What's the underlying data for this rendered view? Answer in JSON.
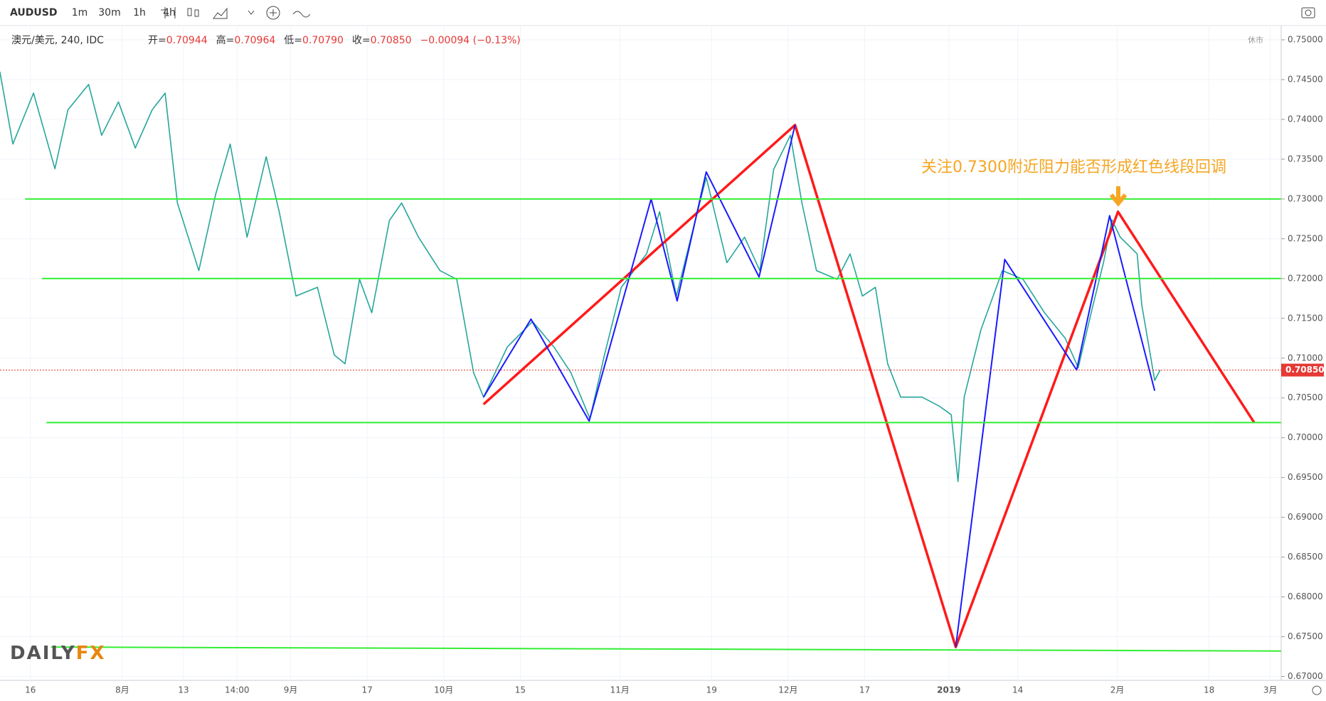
{
  "toolbar": {
    "symbol": "AUDUSD",
    "intervals": [
      "1m",
      "30m",
      "1h",
      "4h"
    ],
    "active_interval": "4h"
  },
  "legend": {
    "title": "澳元/美元, 240, IDC",
    "items": [
      {
        "label": "开=",
        "value": "0.70944"
      },
      {
        "label": "高=",
        "value": "0.70964"
      },
      {
        "label": "低=",
        "value": "0.70790"
      },
      {
        "label": "收=",
        "value": "0.70850"
      }
    ],
    "change": "−0.00094 (−0.13%)",
    "status": "休市"
  },
  "logo": {
    "left": "DAILY",
    "right": "FX"
  },
  "chart_data": {
    "type": "line",
    "annotation": "关注0.7300附近阻力能否形成红色线段回调",
    "xlim": [
      -4,
      163.4
    ],
    "ylim": [
      0.67,
      0.75
    ],
    "xticks": [
      {
        "value": 0,
        "label": "16"
      },
      {
        "value": 12,
        "label": "8月"
      },
      {
        "value": 20,
        "label": "13"
      },
      {
        "value": 27,
        "label": "14:00"
      },
      {
        "value": 34,
        "label": "9月"
      },
      {
        "value": 44,
        "label": "17"
      },
      {
        "value": 54,
        "label": "10月"
      },
      {
        "value": 64,
        "label": "15"
      },
      {
        "value": 77,
        "label": "11月"
      },
      {
        "value": 89,
        "label": "19"
      },
      {
        "value": 99,
        "label": "12月"
      },
      {
        "value": 109,
        "label": "17"
      },
      {
        "value": 120,
        "label": "2019"
      },
      {
        "value": 129,
        "label": "14"
      },
      {
        "value": 142,
        "label": "2月"
      },
      {
        "value": 154,
        "label": "18"
      },
      {
        "value": 162,
        "label": "3月"
      }
    ],
    "yticks": [
      {
        "value": 0.75,
        "label": "0.75000"
      },
      {
        "value": 0.745,
        "label": "0.74500"
      },
      {
        "value": 0.74,
        "label": "0.74000"
      },
      {
        "value": 0.735,
        "label": "0.73500"
      },
      {
        "value": 0.73,
        "label": "0.73000"
      },
      {
        "value": 0.725,
        "label": "0.72500"
      },
      {
        "value": 0.72,
        "label": "0.72000"
      },
      {
        "value": 0.715,
        "label": "0.71500"
      },
      {
        "value": 0.71,
        "label": "0.71000"
      },
      {
        "value": 0.705,
        "label": "0.70500"
      },
      {
        "value": 0.7,
        "label": "0.70000"
      },
      {
        "value": 0.695,
        "label": "0.69500"
      },
      {
        "value": 0.69,
        "label": "0.69000"
      },
      {
        "value": 0.685,
        "label": "0.68500"
      },
      {
        "value": 0.68,
        "label": "0.68000"
      },
      {
        "value": 0.675,
        "label": "0.67500"
      },
      {
        "value": 0.67,
        "label": "0.67000"
      }
    ],
    "grid": true,
    "last_price": {
      "value": 0.7085,
      "label": "0.70850",
      "color": "#e53935"
    },
    "series": [
      {
        "name": "AUDUSD",
        "color": "#26a69a",
        "x": [
          -4.0,
          -2.3,
          0.4,
          3.2,
          4.9,
          7.6,
          9.3,
          11.5,
          13.7,
          15.9,
          17.6,
          19.2,
          22.0,
          24.2,
          26.1,
          28.3,
          30.8,
          32.5,
          34.7,
          37.5,
          39.7,
          41.1,
          43.0,
          44.6,
          46.9,
          48.5,
          50.7,
          53.5,
          55.7,
          57.9,
          59.2,
          62.3,
          65.6,
          68.4,
          70.6,
          73.1,
          75.0,
          77.2,
          80.5,
          82.2,
          84.4,
          86.6,
          88.3,
          91.0,
          93.3,
          95.3,
          97.1,
          99.3,
          100.8,
          102.7,
          105.4,
          107.1,
          108.7,
          110.4,
          112.0,
          113.7,
          116.5,
          118.7,
          120.3,
          121.2,
          122.0,
          124.2,
          127.0,
          129.7,
          132.5,
          135.2,
          136.9,
          138.6,
          140.2,
          141.3,
          142.4,
          144.6,
          145.2,
          146.9,
          147.6
        ],
        "values": [
          0.746,
          0.7369,
          0.7433,
          0.7338,
          0.7412,
          0.7444,
          0.738,
          0.7422,
          0.7364,
          0.7412,
          0.7433,
          0.7295,
          0.721,
          0.7306,
          0.7369,
          0.7252,
          0.7353,
          0.7284,
          0.7178,
          0.7189,
          0.7104,
          0.7093,
          0.7199,
          0.7157,
          0.7273,
          0.7295,
          0.7252,
          0.721,
          0.7199,
          0.7082,
          0.7051,
          0.7114,
          0.7146,
          0.7114,
          0.7082,
          0.7024,
          0.7104,
          0.7189,
          0.7231,
          0.7284,
          0.7178,
          0.7263,
          0.7327,
          0.722,
          0.7252,
          0.721,
          0.7337,
          0.738,
          0.7295,
          0.721,
          0.7199,
          0.7231,
          0.7178,
          0.7189,
          0.7093,
          0.7051,
          0.7051,
          0.704,
          0.7029,
          0.6945,
          0.7051,
          0.7136,
          0.721,
          0.7199,
          0.7157,
          0.7125,
          0.7088,
          0.7157,
          0.722,
          0.7274,
          0.7252,
          0.7231,
          0.7167,
          0.7072,
          0.7085
        ]
      },
      {
        "name": "red segments",
        "color": "#ff1a1a",
        "x": [
          59.2,
          99.9,
          120.9,
          142.1,
          159.9
        ],
        "values": [
          0.7042,
          0.7393,
          0.6737,
          0.7284,
          0.7019
        ]
      },
      {
        "name": "blue segments 1",
        "color": "#1a1aff",
        "x": [
          59.2,
          65.4,
          73.0,
          81.1,
          84.5,
          88.3,
          95.2,
          99.9
        ],
        "values": [
          0.7051,
          0.7149,
          0.7021,
          0.73,
          0.7172,
          0.7334,
          0.7202,
          0.7393
        ]
      },
      {
        "name": "blue segments 2",
        "color": "#1a1aff",
        "x": [
          120.9,
          127.3,
          136.7,
          141.0,
          146.9
        ],
        "values": [
          0.6737,
          0.7224,
          0.7085,
          0.7279,
          0.7059
        ]
      },
      {
        "name": "level 0.73",
        "color": "#33ee33",
        "x": [
          -0.7,
          163.4
        ],
        "values": [
          0.73,
          0.73
        ]
      },
      {
        "name": "level 0.72",
        "color": "#33ee33",
        "x": [
          1.5,
          163.4
        ],
        "values": [
          0.72,
          0.72
        ]
      },
      {
        "name": "level 0.702",
        "color": "#33ee33",
        "x": [
          2.1,
          163.4
        ],
        "values": [
          0.7019,
          0.7019
        ]
      },
      {
        "name": "level 0.6735",
        "color": "#33ee33",
        "x": [
          2.7,
          163.4
        ],
        "values": [
          0.6737,
          0.6732
        ]
      }
    ]
  }
}
